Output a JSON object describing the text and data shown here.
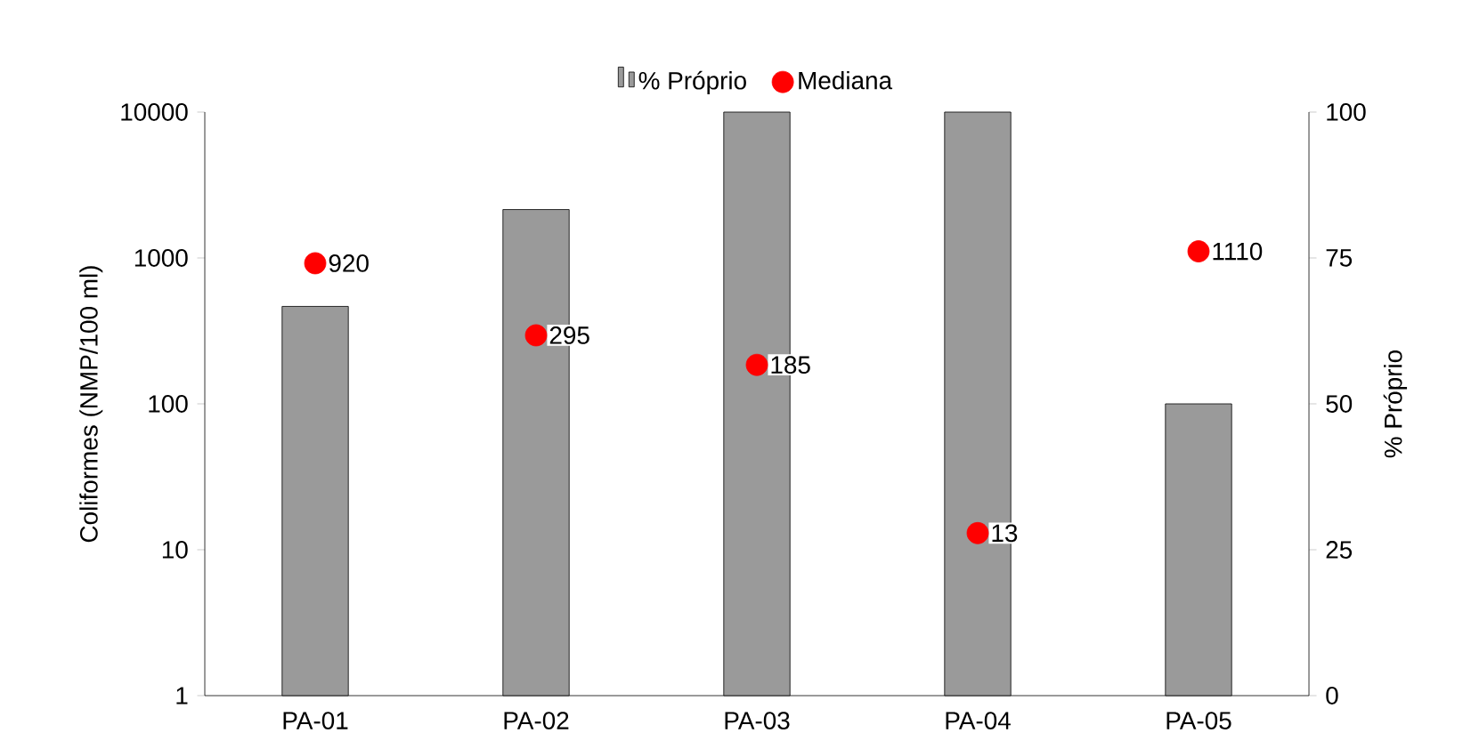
{
  "chart_data": {
    "type": "bar",
    "categories": [
      "PA-01",
      "PA-02",
      "PA-03",
      "PA-04",
      "PA-05"
    ],
    "ylabel": "Coliformes (NMP/100 ml)",
    "y2label": "% Próprio",
    "log": "y",
    "ylim": [
      1,
      10000
    ],
    "yticks": [
      1,
      10,
      100,
      1000,
      10000
    ],
    "y2lim": [
      0,
      100
    ],
    "y2ticks": [
      0,
      25,
      50,
      75,
      100
    ],
    "legend": "top",
    "series": [
      {
        "name": "% Próprio",
        "type": "bar",
        "axis": "y2",
        "color": "#9a9a9a",
        "values": [
          66.7,
          83.3,
          100,
          100,
          50
        ]
      },
      {
        "name": "Mediana",
        "type": "scatter",
        "color": "#ff0000",
        "values": [
          920,
          295,
          185,
          13,
          1110
        ],
        "value_labels": [
          "920",
          "295",
          "185",
          "13",
          "1110"
        ]
      }
    ]
  }
}
